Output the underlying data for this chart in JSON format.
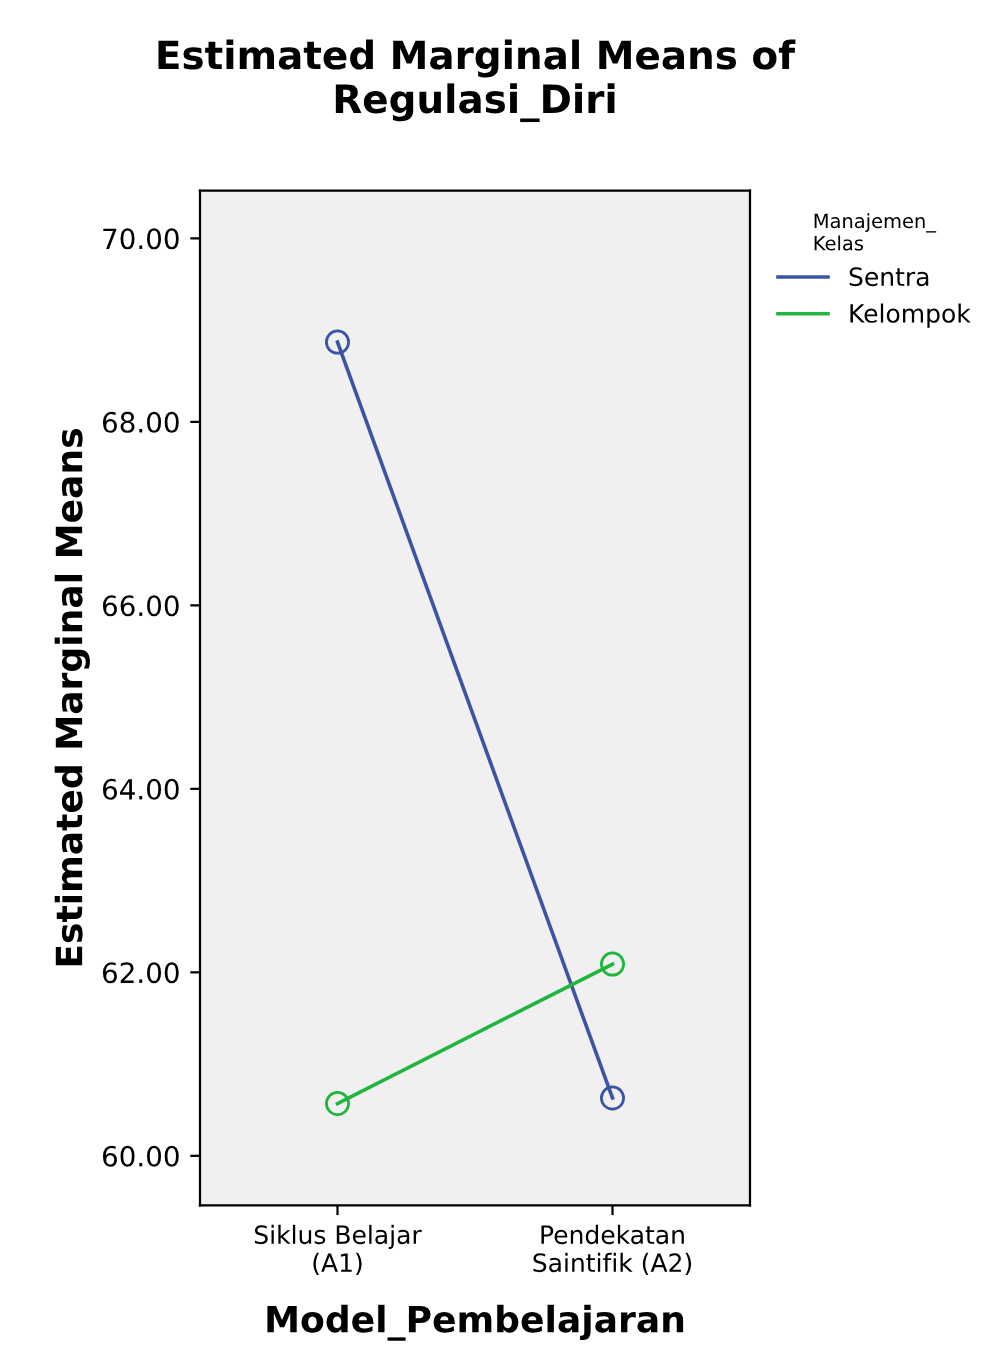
{
  "chart_data": {
    "type": "line",
    "title": "Estimated Marginal Means of\nRegulasi_Diri",
    "xlabel": "Model_Pembelajaran",
    "ylabel": "Estimated Marginal Means",
    "legend_title": "Manajemen_\nKelas",
    "categories": [
      "Siklus Belajar\n(A1)",
      "Pendekatan\nSaintifik (A2)"
    ],
    "series": [
      {
        "name": "Sentra",
        "color": "#3b54a4",
        "values": [
          68.87,
          60.63
        ]
      },
      {
        "name": "Kelompok",
        "color": "#20b53c",
        "values": [
          60.57,
          62.09
        ]
      }
    ],
    "ylim": [
      59.46,
      70.52
    ],
    "yticks": [
      {
        "value": 60,
        "label": "60.00"
      },
      {
        "value": 62,
        "label": "62.00"
      },
      {
        "value": 64,
        "label": "64.00"
      },
      {
        "value": 66,
        "label": "66.00"
      },
      {
        "value": 68,
        "label": "68.00"
      },
      {
        "value": 70,
        "label": "70.00"
      }
    ],
    "marker": "circle",
    "legend": "top right",
    "grid": false
  }
}
